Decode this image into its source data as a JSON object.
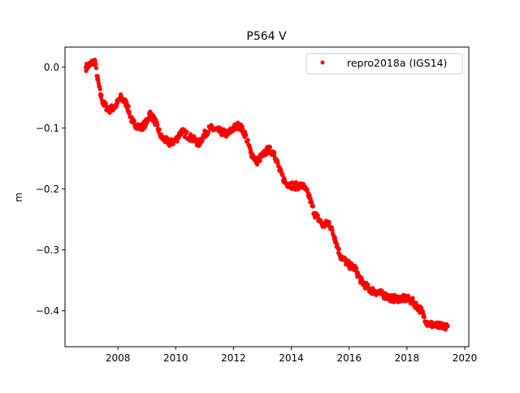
{
  "chart_data": {
    "type": "scatter",
    "title": "P564 V",
    "xlabel": "",
    "ylabel": "m",
    "xlim": [
      2006.17,
      2020.14
    ],
    "ylim": [
      -0.459,
      0.033
    ],
    "x_ticks": [
      2008,
      2010,
      2012,
      2014,
      2016,
      2018,
      2020
    ],
    "x_tick_labels": [
      "2008",
      "2010",
      "2012",
      "2014",
      "2016",
      "2018",
      "2020"
    ],
    "y_ticks": [
      0.0,
      -0.1,
      -0.2,
      -0.3,
      -0.4
    ],
    "y_tick_labels": [
      "0.0",
      "−0.1",
      "−0.2",
      "−0.3",
      "−0.4"
    ],
    "grid": false,
    "legend_position": "top-right",
    "series": [
      {
        "name": "repro2018a (IGS14)",
        "color": "#ff0000",
        "marker": "dot",
        "x": [
          2006.9,
          2007.05,
          2007.2,
          2007.3,
          2007.4,
          2007.5,
          2007.7,
          2007.9,
          2008.1,
          2008.3,
          2008.5,
          2008.8,
          2009.0,
          2009.1,
          2009.3,
          2009.5,
          2009.8,
          2010.0,
          2010.2,
          2010.5,
          2010.8,
          2011.0,
          2011.2,
          2011.5,
          2011.8,
          2012.0,
          2012.2,
          2012.4,
          2012.6,
          2012.8,
          2013.0,
          2013.2,
          2013.4,
          2013.6,
          2013.8,
          2014.1,
          2014.4,
          2014.6,
          2014.8,
          2015.1,
          2015.3,
          2015.5,
          2015.7,
          2016.0,
          2016.2,
          2016.4,
          2016.7,
          2017.0,
          2017.5,
          2018.0,
          2018.2,
          2018.5,
          2018.7,
          2019.0,
          2019.4
        ],
        "y": [
          0.0,
          0.005,
          0.01,
          -0.02,
          -0.045,
          -0.06,
          -0.07,
          -0.065,
          -0.05,
          -0.06,
          -0.09,
          -0.1,
          -0.09,
          -0.075,
          -0.09,
          -0.115,
          -0.125,
          -0.12,
          -0.105,
          -0.115,
          -0.125,
          -0.11,
          -0.1,
          -0.105,
          -0.11,
          -0.1,
          -0.095,
          -0.11,
          -0.14,
          -0.155,
          -0.145,
          -0.135,
          -0.14,
          -0.17,
          -0.19,
          -0.195,
          -0.195,
          -0.21,
          -0.24,
          -0.26,
          -0.255,
          -0.28,
          -0.31,
          -0.325,
          -0.33,
          -0.35,
          -0.365,
          -0.37,
          -0.38,
          -0.38,
          -0.385,
          -0.4,
          -0.42,
          -0.425,
          -0.425
        ]
      }
    ]
  }
}
